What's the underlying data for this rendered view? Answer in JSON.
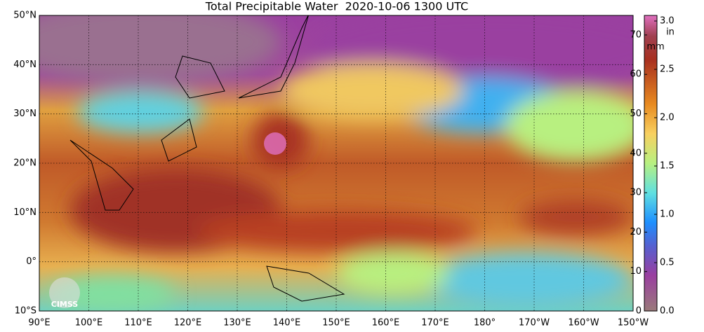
{
  "title": "Total Precipitable Water  2020-10-06 1300 UTC",
  "map": {
    "lat_labels": [
      "50°N",
      "40°N",
      "30°N",
      "20°N",
      "10°N",
      "0°",
      "10°S"
    ],
    "lon_labels": [
      "90°E",
      "100°E",
      "110°E",
      "120°E",
      "130°E",
      "140°E",
      "150°E",
      "160°E",
      "170°E",
      "180°",
      "170°W",
      "160°W",
      "150°W"
    ],
    "logo": "CIMSS"
  },
  "colorbar": {
    "mm_unit": "mm",
    "in_unit": "in",
    "mm_ticks": [
      0,
      10,
      20,
      30,
      40,
      50,
      60,
      70
    ],
    "in_ticks": [
      {
        "value": 0,
        "label": "0.0"
      },
      {
        "value": 0.5,
        "label": "0.5"
      },
      {
        "value": 1,
        "label": "1.0"
      },
      {
        "value": 1.5,
        "label": "1.5"
      },
      {
        "value": 2,
        "label": "2.0"
      },
      {
        "value": 2.5,
        "label": "2.5"
      },
      {
        "value": 3,
        "label": "3.0"
      }
    ]
  }
}
